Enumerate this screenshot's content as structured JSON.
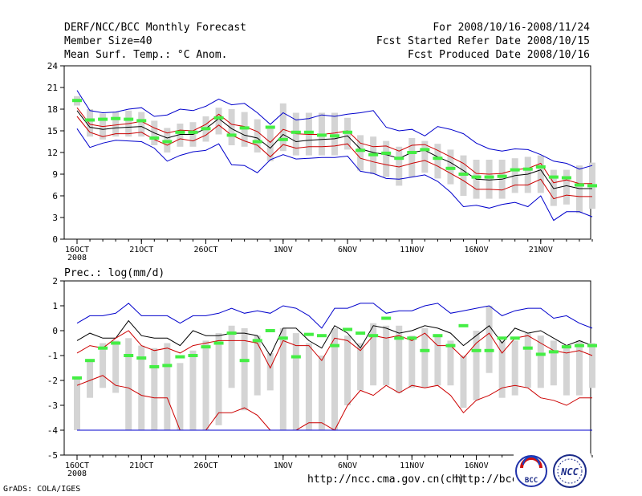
{
  "header": {
    "title": "DERF/NCC/BCC Monthly Forecast",
    "member_size": "Member Size=40",
    "variable": "Mean Surf. Temp.: °C Anom.",
    "period": "For 2008/10/16-2008/11/24",
    "refer_date": "Fcst Started Refer Date 2008/10/15",
    "produced_date": "Fcst Produced Date 2008/10/16"
  },
  "footer": {
    "grads": "GrADS: COLA/IGES",
    "url1": "http://ncc.cma.gov.cn(ch)",
    "url2": "http://bcc.c",
    "logo_bcc": "BCC",
    "logo_ncc": "NCC"
  },
  "chart_data": [
    {
      "type": "line",
      "title": "Mean Surf. Temp.: °C Anom.",
      "xlabel": "",
      "ylabel": "",
      "x_days": 40,
      "ylim": [
        0,
        24
      ],
      "yticks": [
        0,
        3,
        6,
        9,
        12,
        15,
        18,
        21,
        24
      ],
      "xtick_labels": [
        {
          "day": 0,
          "label": "16OCT"
        },
        {
          "day": 5,
          "label": "21OCT"
        },
        {
          "day": 10,
          "label": "26OCT"
        },
        {
          "day": 16,
          "label": "1NOV"
        },
        {
          "day": 21,
          "label": "6NOV"
        },
        {
          "day": 26,
          "label": "11NOV"
        },
        {
          "day": 31,
          "label": "16NOV"
        },
        {
          "day": 36,
          "label": "21NOV"
        }
      ],
      "year_label": "2008",
      "series": [
        {
          "name": "max",
          "color": "#0000cc",
          "values": [
            20.6,
            17.8,
            17.5,
            17.6,
            18.0,
            18.2,
            17.0,
            17.2,
            18.0,
            17.8,
            18.4,
            19.4,
            18.6,
            18.8,
            17.5,
            15.9,
            17.5,
            16.5,
            16.7,
            17.2,
            17.0,
            17.3,
            17.5,
            17.8,
            15.5,
            15.0,
            15.2,
            14.3,
            15.6,
            15.2,
            14.6,
            13.3,
            12.5,
            12.2,
            12.5,
            12.4,
            11.7,
            10.8,
            10.5,
            9.7,
            10.2
          ]
        },
        {
          "name": "upper",
          "color": "#cc0000",
          "values": [
            18.2,
            15.9,
            15.6,
            15.8,
            16.0,
            16.3,
            15.4,
            14.7,
            15.1,
            15.0,
            15.9,
            17.3,
            15.9,
            15.6,
            14.9,
            13.4,
            15.2,
            14.6,
            14.5,
            14.5,
            14.7,
            15.0,
            13.3,
            12.8,
            12.9,
            12.2,
            13.0,
            13.1,
            12.3,
            11.4,
            10.5,
            9.1,
            9.0,
            9.1,
            9.6,
            9.8,
            10.5,
            7.8,
            8.2,
            7.7,
            7.7
          ]
        },
        {
          "name": "mean",
          "color": "#000000",
          "values": [
            17.8,
            15.5,
            15.2,
            15.4,
            15.5,
            15.6,
            14.7,
            14.0,
            14.5,
            14.5,
            15.3,
            16.7,
            15.3,
            14.4,
            14.0,
            12.6,
            14.5,
            13.5,
            13.7,
            13.8,
            13.9,
            14.3,
            12.5,
            12.0,
            11.7,
            11.2,
            12.0,
            12.3,
            11.4,
            10.6,
            9.5,
            8.3,
            8.2,
            8.3,
            8.8,
            9.0,
            9.6,
            7.0,
            7.4,
            7.0,
            7.0
          ]
        },
        {
          "name": "lower",
          "color": "#cc0000",
          "values": [
            17.0,
            14.8,
            14.2,
            14.6,
            14.6,
            14.8,
            13.8,
            13.0,
            13.9,
            13.6,
            14.4,
            15.8,
            14.4,
            13.6,
            13.0,
            11.4,
            13.1,
            12.6,
            12.8,
            12.8,
            12.9,
            13.2,
            11.2,
            10.7,
            10.3,
            10.0,
            10.5,
            10.9,
            10.1,
            9.1,
            8.1,
            6.9,
            6.9,
            6.8,
            7.5,
            7.5,
            8.3,
            5.6,
            6.1,
            5.9,
            5.9
          ]
        },
        {
          "name": "min",
          "color": "#0000cc",
          "values": [
            15.3,
            12.7,
            13.3,
            13.7,
            13.6,
            13.5,
            12.6,
            10.8,
            11.6,
            12.1,
            12.3,
            13.2,
            10.3,
            10.2,
            9.2,
            11.0,
            11.7,
            11.1,
            11.2,
            11.3,
            11.3,
            11.5,
            9.4,
            9.1,
            8.4,
            8.3,
            8.6,
            8.9,
            8.0,
            6.5,
            4.5,
            4.7,
            4.3,
            4.8,
            5.1,
            4.5,
            6.0,
            2.6,
            3.8,
            3.8,
            3.1
          ]
        }
      ],
      "ensemble_box_range": [
        [
          18.5,
          19.8
        ],
        [
          14.2,
          18.0
        ],
        [
          13.8,
          17.4
        ],
        [
          14.2,
          17.6
        ],
        [
          14.2,
          17.8
        ],
        [
          14.2,
          17.6
        ],
        [
          13.0,
          16.4
        ],
        [
          12.0,
          15.4
        ],
        [
          12.8,
          16.0
        ],
        [
          12.8,
          16.2
        ],
        [
          13.5,
          17.0
        ],
        [
          14.5,
          18.2
        ],
        [
          13.0,
          18.0
        ],
        [
          12.8,
          17.6
        ],
        [
          12.0,
          16.6
        ],
        [
          10.8,
          15.6
        ],
        [
          12.2,
          18.8
        ],
        [
          11.6,
          17.5
        ],
        [
          11.6,
          17.5
        ],
        [
          11.6,
          17.5
        ],
        [
          11.6,
          17.5
        ],
        [
          12.4,
          16.8
        ],
        [
          9.5,
          14.4
        ],
        [
          9.0,
          14.2
        ],
        [
          8.6,
          13.6
        ],
        [
          7.4,
          12.8
        ],
        [
          8.6,
          14.0
        ],
        [
          9.2,
          13.6
        ],
        [
          8.4,
          13.2
        ],
        [
          7.6,
          12.4
        ],
        [
          6.0,
          11.6
        ],
        [
          5.6,
          11.0
        ],
        [
          5.6,
          11.0
        ],
        [
          5.6,
          11.0
        ],
        [
          6.4,
          11.2
        ],
        [
          6.4,
          11.4
        ],
        [
          6.4,
          11.6
        ],
        [
          4.6,
          9.6
        ],
        [
          4.8,
          9.6
        ],
        [
          3.6,
          10.2
        ],
        [
          4.2,
          10.6
        ]
      ],
      "green_marker": [
        19.2,
        16.5,
        16.6,
        16.7,
        16.6,
        16.4,
        14.0,
        13.5,
        14.8,
        14.8,
        15.3,
        16.8,
        14.4,
        15.4,
        13.5,
        15.5,
        13.8,
        14.8,
        14.8,
        14.4,
        14.3,
        14.8,
        12.3,
        11.7,
        11.9,
        11.2,
        12.0,
        12.4,
        11.2,
        9.8,
        9.0,
        8.6,
        8.6,
        8.7,
        9.6,
        9.7,
        10.0,
        8.6,
        8.5,
        7.5,
        7.4
      ]
    },
    {
      "type": "line",
      "title": "Prec.: log(mm/d)",
      "xlabel": "",
      "ylabel": "",
      "x_days": 40,
      "ylim": [
        -5,
        2
      ],
      "yticks": [
        -5,
        -4,
        -3,
        -2,
        -1,
        0,
        1,
        2
      ],
      "xtick_labels": [
        {
          "day": 0,
          "label": "16OCT"
        },
        {
          "day": 5,
          "label": "21OCT"
        },
        {
          "day": 10,
          "label": "26OCT"
        },
        {
          "day": 16,
          "label": "1NOV"
        },
        {
          "day": 21,
          "label": "6NOV"
        },
        {
          "day": 26,
          "label": "11NOV"
        },
        {
          "day": 31,
          "label": "16NOV"
        },
        {
          "day": 36,
          "label": "21NOV"
        }
      ],
      "year_label": "2008",
      "series": [
        {
          "name": "max",
          "color": "#0000cc",
          "values": [
            0.3,
            0.6,
            0.6,
            0.7,
            1.1,
            0.6,
            0.6,
            0.6,
            0.3,
            0.6,
            0.6,
            0.7,
            0.9,
            0.7,
            0.8,
            0.7,
            1.0,
            0.9,
            0.6,
            0.1,
            0.9,
            0.9,
            1.1,
            1.1,
            0.7,
            0.8,
            0.8,
            1.0,
            1.1,
            0.7,
            0.8,
            0.9,
            1.0,
            0.6,
            0.8,
            0.9,
            0.9,
            0.5,
            0.6,
            0.3,
            0.1
          ]
        },
        {
          "name": "mean",
          "color": "#000000",
          "values": [
            -0.4,
            -0.1,
            -0.3,
            -0.3,
            0.4,
            -0.2,
            -0.3,
            -0.3,
            -0.6,
            0.0,
            -0.2,
            -0.2,
            -0.1,
            -0.1,
            -0.2,
            -1.0,
            0.1,
            0.1,
            -0.4,
            -0.7,
            0.2,
            -0.1,
            -0.7,
            0.2,
            0.1,
            -0.1,
            0.0,
            0.2,
            0.1,
            -0.1,
            -0.6,
            -0.2,
            0.2,
            -0.5,
            0.1,
            -0.1,
            0.0,
            -0.3,
            -0.6,
            -0.4,
            -0.6
          ]
        },
        {
          "name": "upper",
          "color": "#cc0000",
          "values": [
            -0.9,
            -0.6,
            -0.7,
            -0.3,
            0.0,
            -0.6,
            -0.8,
            -0.7,
            -0.9,
            -0.6,
            -0.5,
            -0.4,
            -0.4,
            -0.4,
            -0.5,
            -1.5,
            -0.4,
            -0.6,
            -0.6,
            -1.2,
            -0.3,
            -0.4,
            -0.8,
            -0.2,
            -0.3,
            -0.2,
            -0.4,
            -0.1,
            -0.6,
            -0.6,
            -1.1,
            -0.5,
            -0.1,
            -0.9,
            -0.3,
            -0.2,
            -0.5,
            -0.8,
            -0.9,
            -0.8,
            -1.0
          ]
        },
        {
          "name": "lower",
          "color": "#cc0000",
          "values": [
            -2.2,
            -2.0,
            -1.8,
            -2.2,
            -2.3,
            -2.6,
            -2.7,
            -2.7,
            -4.0,
            -4.0,
            -4.0,
            -3.3,
            -3.3,
            -3.1,
            -3.4,
            -4.0,
            -4.0,
            -4.0,
            -3.7,
            -3.7,
            -4.0,
            -3.0,
            -2.4,
            -2.6,
            -2.2,
            -2.5,
            -2.2,
            -2.3,
            -2.2,
            -2.6,
            -3.3,
            -2.8,
            -2.6,
            -2.3,
            -2.2,
            -2.3,
            -2.7,
            -2.8,
            -3.0,
            -2.7,
            -2.7
          ]
        },
        {
          "name": "min",
          "color": "#0000cc",
          "values": [
            -4.0,
            -4.0,
            -4.0,
            -4.0,
            -4.0,
            -4.0,
            -4.0,
            -4.0,
            -4.0,
            -4.0,
            -4.0,
            -4.0,
            -4.0,
            -4.0,
            -4.0,
            -4.0,
            -4.0,
            -4.0,
            -4.0,
            -4.0,
            -4.0,
            -4.0,
            -4.0,
            -4.0,
            -4.0,
            -4.0,
            -4.0,
            -4.0,
            -4.0,
            -4.0,
            -4.0,
            -4.0,
            -4.0,
            -4.0,
            -4.0,
            -4.0,
            -4.0,
            -4.0,
            -4.0,
            -4.0,
            -4.0
          ]
        }
      ],
      "ensemble_box_range": [
        [
          -4.0,
          -1.9
        ],
        [
          -2.7,
          -1.2
        ],
        [
          -2.3,
          -0.5
        ],
        [
          -2.5,
          -0.4
        ],
        [
          -4.0,
          -0.3
        ],
        [
          -4.0,
          -0.6
        ],
        [
          -4.0,
          -0.7
        ],
        [
          -4.0,
          -0.5
        ],
        [
          -4.0,
          -1.3
        ],
        [
          -4.0,
          -0.8
        ],
        [
          -4.0,
          -0.4
        ],
        [
          -3.8,
          -0.1
        ],
        [
          -2.3,
          0.2
        ],
        [
          -3.2,
          0.1
        ],
        [
          -2.6,
          -0.2
        ],
        [
          -2.4,
          -0.9
        ],
        [
          -4.0,
          0.1
        ],
        [
          -4.0,
          -0.1
        ],
        [
          -4.0,
          -0.5
        ],
        [
          -4.0,
          -1.0
        ],
        [
          -4.0,
          0.1
        ],
        [
          -3.0,
          -0.2
        ],
        [
          -2.4,
          -0.5
        ],
        [
          -2.2,
          0.3
        ],
        [
          -2.2,
          0.2
        ],
        [
          -2.5,
          0.2
        ],
        [
          -2.3,
          -0.2
        ],
        [
          -2.3,
          0.1
        ],
        [
          -2.2,
          -0.2
        ],
        [
          -2.2,
          -0.4
        ],
        [
          -3.1,
          -1.0
        ],
        [
          -2.8,
          0.0
        ],
        [
          -1.7,
          1.0
        ],
        [
          -2.7,
          -0.4
        ],
        [
          -2.6,
          -0.4
        ],
        [
          -2.3,
          -0.1
        ],
        [
          -2.3,
          -0.2
        ],
        [
          -2.2,
          -0.4
        ],
        [
          -2.6,
          -0.7
        ],
        [
          -2.6,
          -0.4
        ],
        [
          -2.3,
          -0.5
        ]
      ],
      "green_marker": [
        -1.9,
        -1.2,
        -0.7,
        -0.5,
        -1.0,
        -1.1,
        -1.45,
        -1.4,
        -1.05,
        -1.0,
        -0.65,
        -0.5,
        -0.1,
        -1.2,
        -0.4,
        0.0,
        -0.3,
        -1.05,
        -0.15,
        -0.2,
        -0.6,
        0.05,
        -0.1,
        -0.2,
        0.5,
        -0.3,
        -0.3,
        -0.8,
        -0.2,
        -0.6,
        0.2,
        -0.8,
        -0.8,
        -0.3,
        -0.3,
        -0.7,
        -0.95,
        -0.85,
        -0.65,
        -0.6,
        -0.6
      ]
    }
  ]
}
